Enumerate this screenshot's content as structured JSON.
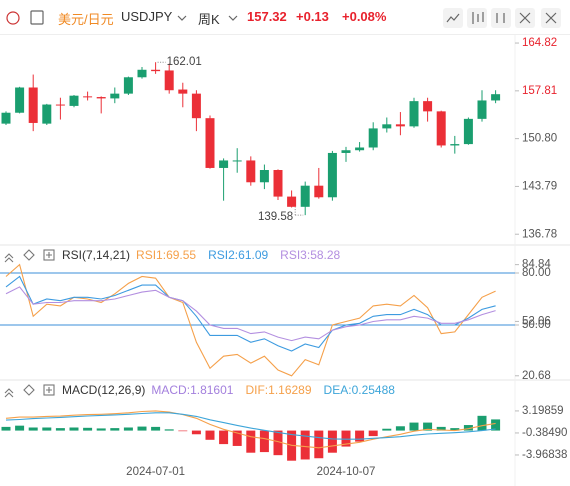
{
  "header": {
    "name": "美元/日元",
    "symbol": "USDJPY",
    "period": "周K",
    "price": 157.32,
    "change": {
      "value": 0.13,
      "label": "+0.13"
    },
    "change_pct": {
      "value": 0.08,
      "label": "+0.08%"
    }
  },
  "chart_data": [
    {
      "type": "candlestick",
      "open": [
        153.0,
        154.6,
        158.3,
        153.0,
        155.8,
        155.6,
        157.0,
        156.9,
        156.7,
        157.4,
        159.8,
        160.9,
        160.8,
        158.0,
        157.4,
        153.8,
        146.5,
        147.6,
        147.6,
        144.4,
        146.2,
        142.3,
        140.8,
        143.9,
        142.2,
        148.7,
        149.1,
        149.5,
        152.3,
        152.9,
        152.6,
        156.3,
        154.8,
        149.8,
        150.0,
        153.7,
        156.4
      ],
      "high": [
        154.8,
        158.4,
        160.2,
        155.9,
        156.8,
        157.2,
        157.7,
        157.0,
        158.3,
        159.9,
        161.3,
        162.01,
        161.8,
        159.0,
        157.9,
        154.2,
        147.9,
        149.4,
        148.2,
        147.0,
        146.3,
        143.2,
        144.5,
        146.5,
        149.0,
        149.6,
        150.3,
        153.2,
        153.9,
        154.7,
        156.8,
        156.8,
        154.9,
        151.2,
        153.9,
        157.9,
        157.9
      ],
      "low": [
        152.8,
        154.5,
        151.9,
        152.8,
        153.6,
        155.4,
        156.4,
        154.5,
        156.0,
        157.2,
        159.6,
        160.3,
        157.4,
        155.4,
        151.9,
        146.4,
        141.7,
        145.8,
        143.9,
        143.4,
        141.8,
        140.7,
        139.58,
        142.0,
        141.7,
        147.4,
        148.9,
        149.1,
        151.7,
        151.3,
        152.4,
        153.3,
        149.5,
        148.6,
        149.9,
        153.3,
        156.0
      ],
      "close": [
        154.6,
        158.3,
        153.1,
        155.8,
        155.7,
        157.1,
        156.9,
        156.7,
        157.4,
        159.8,
        160.9,
        160.7,
        157.9,
        157.4,
        153.8,
        146.5,
        147.6,
        147.6,
        144.4,
        146.2,
        142.3,
        140.8,
        143.9,
        142.2,
        148.7,
        149.1,
        149.5,
        152.3,
        152.9,
        152.6,
        156.3,
        154.8,
        149.8,
        150.0,
        153.7,
        156.4,
        157.32
      ],
      "colors": {
        "up": "#1a9e6f",
        "down": "#eb2f37"
      },
      "ylim": [
        135.2,
        166.0
      ],
      "yticks": [
        164.82,
        157.81,
        {
          "value": 150.8,
          "label": "150.80"
        },
        143.79,
        136.78
      ],
      "annotate": {
        "max_index": 11,
        "min_index": 22
      }
    },
    {
      "type": "line",
      "title": "RSI(7,14,21)",
      "series": [
        {
          "name": "RSI1",
          "color": "#f5a04a",
          "values": [
            78,
            84.84,
            55,
            62,
            61,
            66,
            65,
            63,
            68,
            74,
            78,
            77,
            66,
            63,
            40,
            25,
            32,
            33,
            28,
            32,
            24,
            20.68,
            30,
            27,
            50,
            52,
            54,
            61,
            62,
            61,
            67,
            60,
            45,
            46,
            56,
            66,
            69.55
          ]
        },
        {
          "name": "RSI2",
          "color": "#3d9be0",
          "values": [
            72,
            78,
            62,
            65,
            64,
            66,
            66,
            65,
            67,
            70,
            73,
            73,
            66,
            64,
            55,
            44,
            44,
            44,
            40,
            42,
            38,
            35,
            39,
            37,
            47,
            50,
            51,
            55,
            56,
            56,
            59,
            56,
            50,
            50,
            54,
            59,
            61.09
          ]
        },
        {
          "name": "RSI3",
          "color": "#b38fe0",
          "values": [
            68,
            72,
            62,
            63,
            63,
            64,
            64,
            64,
            65,
            67,
            69,
            70,
            66,
            64,
            58,
            50,
            48,
            48,
            45,
            46,
            43,
            41,
            43,
            42,
            47,
            49,
            50,
            52,
            53,
            53,
            55,
            54,
            51,
            51,
            53,
            56,
            58.28
          ]
        }
      ],
      "ylim": [
        19.4,
        85.2
      ],
      "yticks": [
        84.84,
        {
          "value": 80,
          "label": "80.00"
        },
        52.06,
        {
          "value": 50,
          "label": "50.00"
        },
        20.68
      ],
      "reference_lines": [
        80,
        50
      ],
      "reference_color": "#3b8fd9"
    },
    {
      "type": "combo",
      "title": "MACD(12,26,9)",
      "categories": [
        null,
        null,
        null,
        null,
        null,
        null,
        null,
        null,
        null,
        null,
        null,
        "2024-07-01",
        null,
        null,
        null,
        null,
        null,
        null,
        null,
        null,
        null,
        null,
        null,
        null,
        null,
        "2024-10-07",
        null,
        null,
        null,
        null,
        null,
        null,
        null,
        null,
        null,
        null,
        null
      ],
      "series": [
        {
          "name": "MACD",
          "type": "bar",
          "color": "#a37fdd",
          "values": [
            0.6,
            0.8,
            0.5,
            0.5,
            0.4,
            0.5,
            0.45,
            0.35,
            0.4,
            0.5,
            0.65,
            0.6,
            0.2,
            -0.1,
            -0.6,
            -1.5,
            -2.2,
            -2.5,
            -3.6,
            -3.5,
            -4.0,
            -4.9,
            -4.7,
            -4.5,
            -3.6,
            -2.6,
            -1.8,
            -0.9,
            0.3,
            0.7,
            1.3,
            1.3,
            0.6,
            0.4,
            0.9,
            2.4,
            1.81601
          ]
        },
        {
          "name": "DIF",
          "type": "line",
          "color": "#f5a04a",
          "values": [
            2.0,
            2.2,
            2.2,
            2.3,
            2.35,
            2.5,
            2.6,
            2.65,
            2.75,
            2.9,
            3.1,
            3.19859,
            3.0,
            2.6,
            2.0,
            1.0,
            0.2,
            -0.4,
            -1.0,
            -1.3,
            -1.8,
            -2.4,
            -2.6,
            -2.8,
            -2.5,
            -2.2,
            -1.9,
            -1.4,
            -1.0,
            -0.6,
            -0.1,
            0.2,
            0.1,
            0.0,
            0.3,
            0.8,
            1.16289
          ]
        },
        {
          "name": "DEA",
          "type": "line",
          "color": "#3da5d9",
          "values": [
            1.7,
            1.8,
            1.95,
            2.05,
            2.15,
            2.25,
            2.37,
            2.47,
            2.55,
            2.65,
            2.78,
            2.9,
            2.9,
            2.65,
            2.3,
            1.75,
            1.3,
            0.85,
            0.4,
            0.05,
            -0.3,
            -0.65,
            -0.9,
            -1.15,
            -1.35,
            -1.4,
            -1.4,
            -1.25,
            -1.15,
            -1.0,
            -0.75,
            -0.55,
            -0.45,
            -0.35,
            -0.2,
            0.0,
            0.25488
          ]
        }
      ],
      "colors": {
        "up": "#1a9e6f",
        "down": "#eb2f37"
      },
      "ylim": [
        -5.6,
        5.3
      ],
      "yticks": [
        3.19859,
        {
          "value": -0.3849,
          "label": "-0.38490"
        },
        -3.96838
      ]
    }
  ]
}
